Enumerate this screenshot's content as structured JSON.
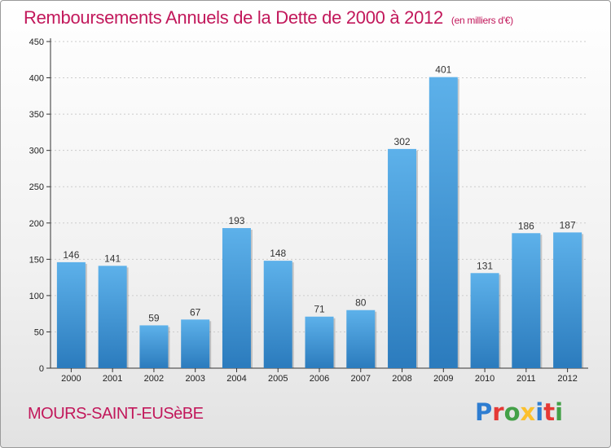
{
  "title": "Remboursements Annuels de la Dette de 2000 à 2012",
  "unit": "(en milliers d'€)",
  "commune": "MOURS-SAINT-EUSèBE",
  "logo": {
    "letters": [
      "P",
      "r",
      "o",
      "x",
      "i",
      "t",
      "i"
    ],
    "colors": [
      "#2e7dd1",
      "#e53935",
      "#43a047",
      "#fbc02d",
      "#2e7dd1",
      "#e53935",
      "#43a047"
    ]
  },
  "colors": {
    "title": "#c2185b",
    "bar_top": "#5db1ea",
    "bar_bottom": "#2b7bbd",
    "axis": "#333333",
    "grid": "#cccccc"
  },
  "chart_data": {
    "type": "bar",
    "categories": [
      "2000",
      "2001",
      "2002",
      "2003",
      "2004",
      "2005",
      "2006",
      "2007",
      "2008",
      "2009",
      "2010",
      "2011",
      "2012"
    ],
    "values": [
      146,
      141,
      59,
      67,
      193,
      148,
      71,
      80,
      302,
      401,
      131,
      186,
      187
    ],
    "title": "Remboursements Annuels de la Dette de 2000 à 2012",
    "ylim": [
      0,
      450
    ],
    "yticks": [
      0,
      50,
      100,
      150,
      200,
      250,
      300,
      350,
      400,
      450
    ],
    "grid": true
  }
}
